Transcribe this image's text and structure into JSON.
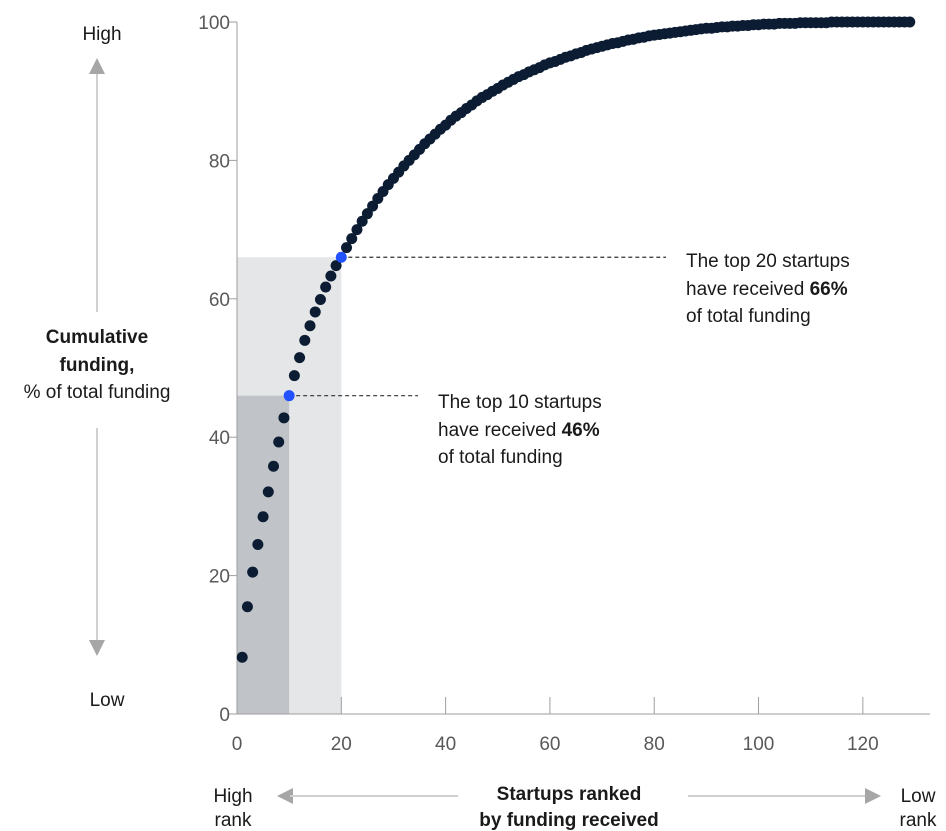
{
  "chart_data": {
    "type": "scatter",
    "title": "",
    "x_axis": {
      "label_line1": "Startups ranked",
      "label_line2": "by funding received",
      "range": [
        0,
        130
      ],
      "ticks": [
        0,
        20,
        40,
        60,
        80,
        100,
        120
      ],
      "left_end": [
        "High",
        "rank"
      ],
      "right_end": [
        "Low",
        "rank"
      ]
    },
    "y_axis": {
      "label_line1": "Cumulative",
      "label_line2": "funding,",
      "label_line3": "% of total funding",
      "range": [
        0,
        100
      ],
      "ticks": [
        0,
        20,
        40,
        60,
        80,
        100
      ],
      "top_end": "High",
      "bottom_end": "Low"
    },
    "series": [
      {
        "points": [
          [
            1,
            8.2
          ],
          [
            2,
            15.5
          ],
          [
            3,
            20.5
          ],
          [
            4,
            24.5
          ],
          [
            5,
            28.5
          ],
          [
            6,
            32.1
          ],
          [
            7,
            35.8
          ],
          [
            8,
            39.3
          ],
          [
            9,
            42.8
          ],
          [
            10,
            46
          ],
          [
            11,
            48.9
          ],
          [
            12,
            51.5
          ],
          [
            13,
            54
          ],
          [
            14,
            56.1
          ],
          [
            15,
            58.1
          ],
          [
            16,
            59.9
          ],
          [
            17,
            61.7
          ],
          [
            18,
            63.3
          ],
          [
            19,
            64.8
          ],
          [
            20,
            66
          ],
          [
            21,
            67.4
          ],
          [
            22,
            68.7
          ],
          [
            23,
            70
          ],
          [
            24,
            71.2
          ],
          [
            25,
            72.3
          ],
          [
            26,
            73.4
          ],
          [
            27,
            74.5
          ],
          [
            28,
            75.5
          ],
          [
            29,
            76.5
          ],
          [
            30,
            77.4
          ],
          [
            31,
            78.3
          ],
          [
            32,
            79.2
          ],
          [
            33,
            80
          ],
          [
            34,
            80.8
          ],
          [
            35,
            81.6
          ],
          [
            36,
            82.4
          ],
          [
            37,
            83.1
          ],
          [
            38,
            83.8
          ],
          [
            39,
            84.5
          ],
          [
            40,
            85.1
          ],
          [
            41,
            85.8
          ],
          [
            42,
            86.4
          ],
          [
            43,
            86.9
          ],
          [
            44,
            87.5
          ],
          [
            45,
            88
          ],
          [
            46,
            88.6
          ],
          [
            47,
            89.1
          ],
          [
            48,
            89.5
          ],
          [
            49,
            90
          ],
          [
            50,
            90.4
          ],
          [
            51,
            90.9
          ],
          [
            52,
            91.3
          ],
          [
            53,
            91.7
          ],
          [
            54,
            92.1
          ],
          [
            55,
            92.4
          ],
          [
            56,
            92.8
          ],
          [
            57,
            93.1
          ],
          [
            58,
            93.4
          ],
          [
            59,
            93.8
          ],
          [
            60,
            94.1
          ],
          [
            61,
            94.3
          ],
          [
            62,
            94.6
          ],
          [
            63,
            94.9
          ],
          [
            64,
            95.1
          ],
          [
            65,
            95.4
          ],
          [
            66,
            95.6
          ],
          [
            67,
            95.9
          ],
          [
            68,
            96.1
          ],
          [
            69,
            96.3
          ],
          [
            70,
            96.5
          ],
          [
            71,
            96.7
          ],
          [
            72,
            96.9
          ],
          [
            73,
            97
          ],
          [
            74,
            97.2
          ],
          [
            75,
            97.4
          ],
          [
            76,
            97.5
          ],
          [
            77,
            97.7
          ],
          [
            78,
            97.8
          ],
          [
            79,
            98
          ],
          [
            80,
            98.1
          ],
          [
            81,
            98.2
          ],
          [
            82,
            98.3
          ],
          [
            83,
            98.4
          ],
          [
            84,
            98.5
          ],
          [
            85,
            98.6
          ],
          [
            86,
            98.7
          ],
          [
            87,
            98.8
          ],
          [
            88,
            98.9
          ],
          [
            89,
            99
          ],
          [
            90,
            99.1
          ],
          [
            91,
            99.1
          ],
          [
            92,
            99.2
          ],
          [
            93,
            99.3
          ],
          [
            94,
            99.3
          ],
          [
            95,
            99.4
          ],
          [
            96,
            99.4
          ],
          [
            97,
            99.5
          ],
          [
            98,
            99.5
          ],
          [
            99,
            99.6
          ],
          [
            100,
            99.6
          ],
          [
            101,
            99.7
          ],
          [
            102,
            99.7
          ],
          [
            103,
            99.7
          ],
          [
            104,
            99.8
          ],
          [
            105,
            99.8
          ],
          [
            106,
            99.8
          ],
          [
            107,
            99.8
          ],
          [
            108,
            99.9
          ],
          [
            109,
            99.9
          ],
          [
            110,
            99.9
          ],
          [
            111,
            99.9
          ],
          [
            112,
            99.9
          ],
          [
            113,
            99.9
          ],
          [
            114,
            100
          ],
          [
            115,
            100
          ],
          [
            116,
            100
          ],
          [
            117,
            100
          ],
          [
            118,
            100
          ],
          [
            119,
            100
          ],
          [
            120,
            100
          ],
          [
            121,
            100
          ],
          [
            122,
            100
          ],
          [
            123,
            100
          ],
          [
            124,
            100
          ],
          [
            125,
            100
          ],
          [
            126,
            100
          ],
          [
            127,
            100
          ],
          [
            128,
            100
          ],
          [
            129,
            100
          ]
        ]
      }
    ],
    "highlights": [
      {
        "x": 10,
        "y": 46,
        "line1": "The top 10 startups",
        "line2_prefix": "have received ",
        "line2_bold": "46%",
        "line3": "of total funding"
      },
      {
        "x": 20,
        "y": 66,
        "line1": "The top 20 startups",
        "line2_prefix": "have received ",
        "line2_bold": "66%",
        "line3": "of total funding"
      }
    ],
    "colors": {
      "dot": "#0b1c33",
      "highlight_dot": "#2251ff",
      "band_top10": "#c0c4c8",
      "band_top20": "#e5e6e8",
      "axis": "#9e9e9e",
      "arrow": "#a6a6a6"
    }
  }
}
